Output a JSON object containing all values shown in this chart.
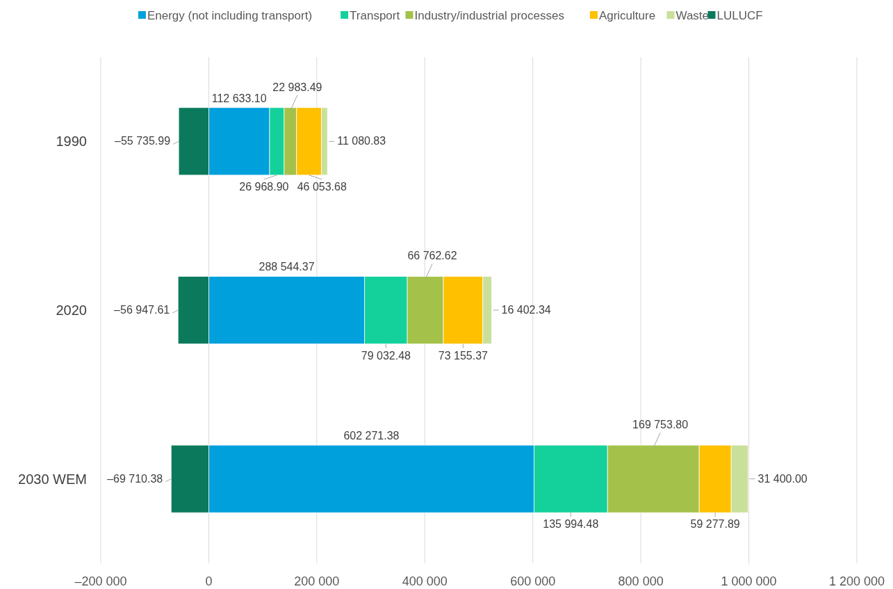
{
  "chart_data": {
    "type": "bar",
    "orientation": "horizontal",
    "stacked": true,
    "categories": [
      "1990",
      "2020",
      "2030 WEM"
    ],
    "series": [
      {
        "name": "Energy (not including transport)",
        "color": "#00a0dc",
        "values": [
          112633.1,
          288544.37,
          602271.38
        ],
        "value_labels": [
          "112 633.10",
          "288 544.37",
          "602 271.38"
        ]
      },
      {
        "name": "Transport",
        "color": "#14d19b",
        "values": [
          26968.9,
          79032.48,
          135994.48
        ],
        "value_labels": [
          "26 968.90",
          "79 032.48",
          "135 994.48"
        ]
      },
      {
        "name": "Industry/industrial processes",
        "color": "#a4c24a",
        "values": [
          22983.49,
          66762.62,
          169753.8
        ],
        "value_labels": [
          "22 983.49",
          "66 762.62",
          "169 753.80"
        ]
      },
      {
        "name": "Agriculture",
        "color": "#ffc000",
        "values": [
          46053.68,
          73155.37,
          59277.89
        ],
        "value_labels": [
          "46 053.68",
          "73 155.37",
          "59 277.89"
        ]
      },
      {
        "name": "Waste",
        "color": "#c9e09a",
        "values": [
          11080.83,
          16402.34,
          31400.0
        ],
        "value_labels": [
          "11 080.83",
          "16 402.34",
          "31 400.00"
        ]
      },
      {
        "name": "LULUCF",
        "color": "#0b7a5c",
        "values": [
          -55735.99,
          -56947.61,
          -69710.38
        ],
        "value_labels": [
          "–55 735.99",
          "–56 947.61",
          "–69 710.38"
        ]
      }
    ],
    "xlim": [
      -200000,
      1200000
    ],
    "xticks": [
      {
        "value": -200000,
        "label": "–200 000"
      },
      {
        "value": 0,
        "label": "0"
      },
      {
        "value": 200000,
        "label": "200 000"
      },
      {
        "value": 400000,
        "label": "400 000"
      },
      {
        "value": 600000,
        "label": "600 000"
      },
      {
        "value": 800000,
        "label": "800 000"
      },
      {
        "value": 1000000,
        "label": "1 000 000"
      },
      {
        "value": 1200000,
        "label": "1 200 000"
      }
    ],
    "grid": "x",
    "legend": "top"
  }
}
